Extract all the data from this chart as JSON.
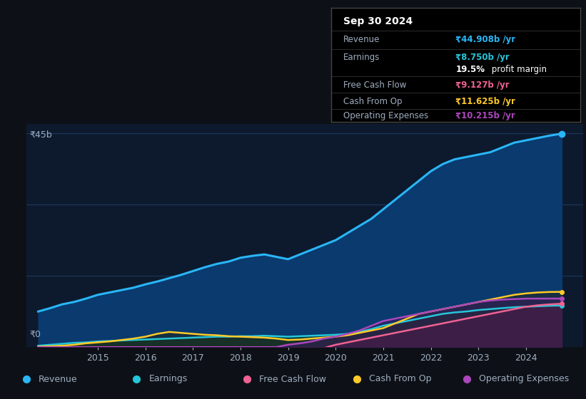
{
  "bg_color": "#0d1117",
  "plot_bg_color": "#0d1a2e",
  "grid_color": "#1e3a5f",
  "text_color": "#a0aec0",
  "years": [
    2013.75,
    2014.0,
    2014.25,
    2014.5,
    2014.75,
    2015.0,
    2015.25,
    2015.5,
    2015.75,
    2016.0,
    2016.25,
    2016.5,
    2016.75,
    2017.0,
    2017.25,
    2017.5,
    2017.75,
    2018.0,
    2018.25,
    2018.5,
    2018.75,
    2019.0,
    2019.25,
    2019.5,
    2019.75,
    2020.0,
    2020.25,
    2020.5,
    2020.75,
    2021.0,
    2021.25,
    2021.5,
    2021.75,
    2022.0,
    2022.25,
    2022.5,
    2022.75,
    2023.0,
    2023.25,
    2023.5,
    2023.75,
    2024.0,
    2024.25,
    2024.5,
    2024.75
  ],
  "revenue": [
    7.5,
    8.2,
    9.0,
    9.5,
    10.2,
    11.0,
    11.5,
    12.0,
    12.5,
    13.2,
    13.8,
    14.5,
    15.2,
    16.0,
    16.8,
    17.5,
    18.0,
    18.8,
    19.2,
    19.5,
    19.0,
    18.5,
    19.5,
    20.5,
    21.5,
    22.5,
    24.0,
    25.5,
    27.0,
    29.0,
    31.0,
    33.0,
    35.0,
    37.0,
    38.5,
    39.5,
    40.0,
    40.5,
    41.0,
    42.0,
    43.0,
    43.5,
    44.0,
    44.5,
    44.908
  ],
  "earnings": [
    0.3,
    0.5,
    0.7,
    0.9,
    1.0,
    1.2,
    1.3,
    1.4,
    1.5,
    1.6,
    1.7,
    1.8,
    1.9,
    2.0,
    2.1,
    2.2,
    2.2,
    2.3,
    2.3,
    2.4,
    2.3,
    2.2,
    2.3,
    2.4,
    2.5,
    2.6,
    2.8,
    3.2,
    3.8,
    4.5,
    5.0,
    5.5,
    6.0,
    6.5,
    7.0,
    7.3,
    7.5,
    7.8,
    8.0,
    8.2,
    8.4,
    8.5,
    8.6,
    8.7,
    8.75
  ],
  "free_cash_flow": [
    0.0,
    0.0,
    0.0,
    0.0,
    0.0,
    0.0,
    0.0,
    0.0,
    0.0,
    0.0,
    0.0,
    0.0,
    0.0,
    0.0,
    0.0,
    0.0,
    0.0,
    0.0,
    0.0,
    0.0,
    0.0,
    -0.5,
    -0.4,
    -0.3,
    -0.2,
    0.5,
    1.0,
    1.5,
    2.0,
    2.5,
    3.0,
    3.5,
    4.0,
    4.5,
    5.0,
    5.5,
    6.0,
    6.5,
    7.0,
    7.5,
    8.0,
    8.5,
    8.8,
    9.0,
    9.127
  ],
  "cash_from_op": [
    0.1,
    0.2,
    0.3,
    0.5,
    0.8,
    1.0,
    1.2,
    1.5,
    1.8,
    2.2,
    2.8,
    3.2,
    3.0,
    2.8,
    2.6,
    2.5,
    2.3,
    2.2,
    2.1,
    2.0,
    1.8,
    1.5,
    1.6,
    1.8,
    2.0,
    2.2,
    2.5,
    3.0,
    3.5,
    4.0,
    5.0,
    6.0,
    7.0,
    7.5,
    8.0,
    8.5,
    9.0,
    9.5,
    10.0,
    10.5,
    11.0,
    11.3,
    11.5,
    11.6,
    11.625
  ],
  "operating_expenses": [
    0.0,
    0.0,
    0.0,
    0.0,
    0.0,
    0.0,
    0.0,
    0.0,
    0.0,
    0.0,
    0.0,
    0.0,
    0.0,
    0.0,
    0.0,
    0.0,
    0.0,
    0.0,
    0.0,
    0.0,
    0.0,
    0.5,
    0.8,
    1.2,
    1.8,
    2.2,
    2.8,
    3.5,
    4.5,
    5.5,
    6.0,
    6.5,
    7.0,
    7.5,
    8.0,
    8.5,
    9.0,
    9.5,
    9.8,
    10.0,
    10.1,
    10.2,
    10.215,
    10.215,
    10.215
  ],
  "revenue_color": "#29b6f6",
  "earnings_color": "#26c6da",
  "fcf_color": "#f06292",
  "cashop_color": "#ffca28",
  "opex_color": "#ab47bc",
  "ylim": [
    0,
    47
  ],
  "xlim": [
    2013.5,
    2025.2
  ],
  "ytick_labels": [
    "₹0",
    "₹45b"
  ],
  "xticks": [
    2015,
    2016,
    2017,
    2018,
    2019,
    2020,
    2021,
    2022,
    2023,
    2024
  ],
  "info_box": {
    "date": "Sep 30 2024",
    "revenue_label": "Revenue",
    "revenue_value": "₹44.908b /yr",
    "revenue_color": "#29b6f6",
    "earnings_label": "Earnings",
    "earnings_value": "₹8.750b /yr",
    "earnings_color": "#26c6da",
    "margin_pct": "19.5%",
    "margin_rest": " profit margin",
    "fcf_label": "Free Cash Flow",
    "fcf_value": "₹9.127b /yr",
    "fcf_color": "#f06292",
    "cashop_label": "Cash From Op",
    "cashop_value": "₹11.625b /yr",
    "cashop_color": "#ffca28",
    "opex_label": "Operating Expenses",
    "opex_value": "₹10.215b /yr",
    "opex_color": "#ab47bc",
    "label_color": "#a0aec0"
  },
  "legend_items": [
    {
      "label": "Revenue",
      "color": "#29b6f6"
    },
    {
      "label": "Earnings",
      "color": "#26c6da"
    },
    {
      "label": "Free Cash Flow",
      "color": "#f06292"
    },
    {
      "label": "Cash From Op",
      "color": "#ffca28"
    },
    {
      "label": "Operating Expenses",
      "color": "#ab47bc"
    }
  ]
}
